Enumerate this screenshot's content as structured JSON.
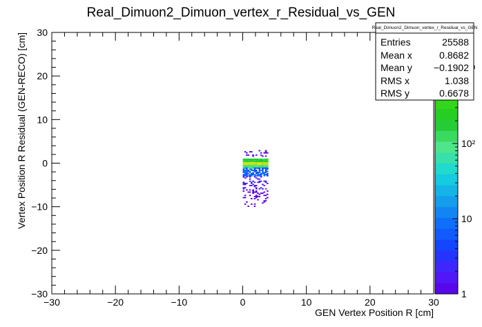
{
  "chart_data": {
    "type": "heatmap",
    "title": "Real_Dimuon2_Dimuon_vertex_r_Residual_vs_GEN",
    "xlabel": "GEN Vertex Position R [cm]",
    "ylabel": "Vertex Position R Residual (GEN-RECO) [cm]",
    "xlim": [
      -30,
      30
    ],
    "ylim": [
      -30,
      30
    ],
    "x_ticks": [
      "−30",
      "−20",
      "−10",
      "0",
      "10",
      "20",
      "30"
    ],
    "y_ticks": [
      "−30",
      "−20",
      "−10",
      "0",
      "10",
      "20",
      "30"
    ],
    "z_scale": "log",
    "z_range": [
      1,
      3000
    ],
    "z_tick_labels": [
      "1",
      "10",
      "10²",
      "10³"
    ],
    "z_tick_values": [
      1,
      10,
      100,
      1000
    ],
    "grid": false,
    "stats_box": {
      "title": "Real_Dimuon2_Dimuon_vertex_r_Residual_vs_GEN",
      "rows": [
        {
          "label": "Entries",
          "value": "25588"
        },
        {
          "label": "Mean x",
          "value": "0.8682"
        },
        {
          "label": "Mean y",
          "value": "−0.1902"
        },
        {
          "label": "RMS x",
          "value": "1.038"
        },
        {
          "label": "RMS y",
          "value": "0.6678"
        }
      ]
    },
    "density_summary": [
      {
        "x": [
          0,
          4
        ],
        "y": [
          -0.5,
          0.3
        ],
        "count": 1500
      },
      {
        "x": [
          0,
          4
        ],
        "y": [
          0.3,
          1.0
        ],
        "count": 200
      },
      {
        "x": [
          0,
          4
        ],
        "y": [
          -1.2,
          -0.5
        ],
        "count": 100
      },
      {
        "x": [
          0,
          4
        ],
        "y": [
          -3.0,
          -1.2
        ],
        "count": 8
      },
      {
        "x": [
          0,
          4
        ],
        "y": [
          -6.0,
          -3.0
        ],
        "count": 2
      },
      {
        "x": [
          0,
          4
        ],
        "y": [
          -10.0,
          -6.0
        ],
        "count": 1
      },
      {
        "x": [
          0,
          4
        ],
        "y": [
          1.0,
          2.8
        ],
        "count": 1
      }
    ]
  }
}
